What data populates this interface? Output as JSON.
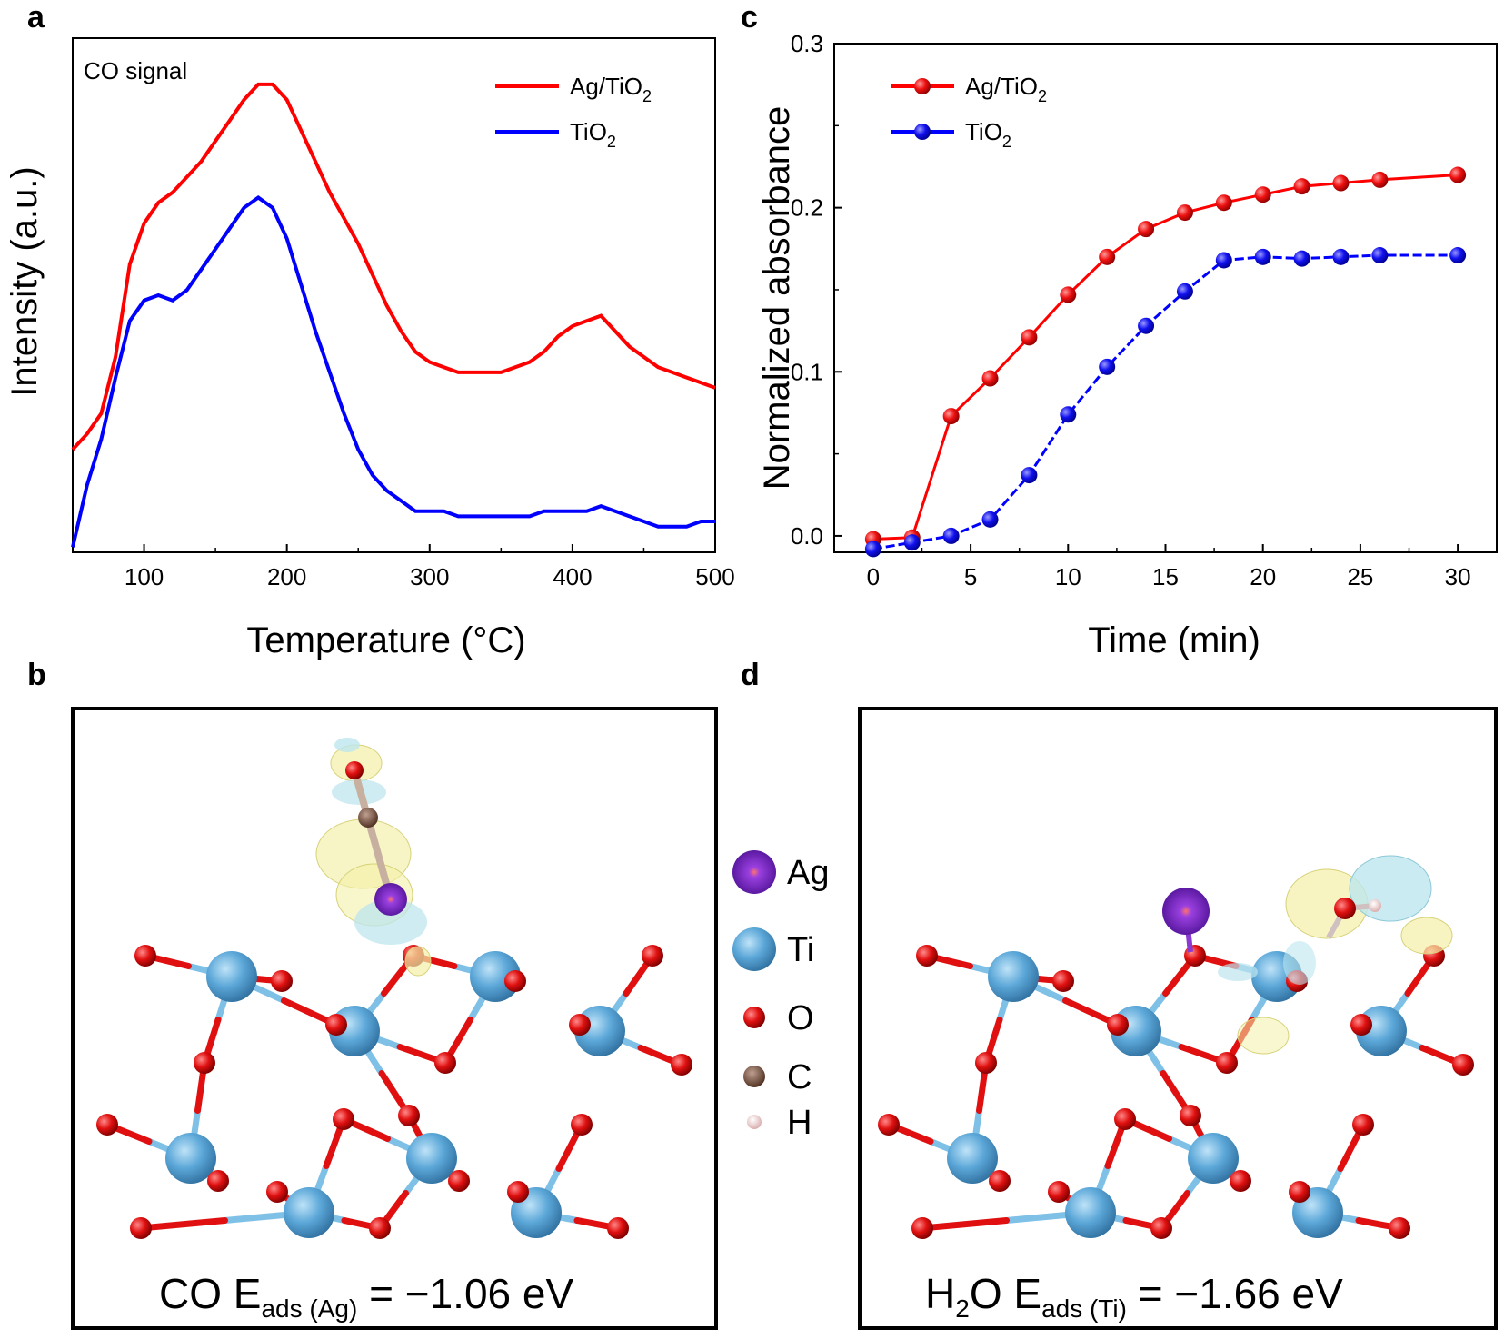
{
  "panels": {
    "a": {
      "label": "a"
    },
    "b": {
      "label": "b",
      "energy": {
        "prefix": "CO E",
        "sub": "ads (Ag)",
        "suffix": " = −1.06 eV"
      }
    },
    "c": {
      "label": "c"
    },
    "d": {
      "label": "d",
      "energy": {
        "pre": "H",
        "sub1": "2",
        "mid": "O E",
        "sub2": "ads (Ti)",
        "suffix": " = −1.66 eV"
      }
    }
  },
  "atom_legend": [
    {
      "name": "Ag",
      "color": "#6a1fb8"
    },
    {
      "name": "Ti",
      "color": "#5ba7d8"
    },
    {
      "name": "O",
      "color": "#e01010"
    },
    {
      "name": "C",
      "color": "#6b4a3a"
    },
    {
      "name": "H",
      "color": "#f0c8c8"
    }
  ],
  "chart_data": [
    {
      "id": "a",
      "type": "line",
      "title": "",
      "annotation": "CO signal",
      "xlabel": "Temperature (°C)",
      "ylabel": "Intensity (a.u.)",
      "xlim": [
        50,
        500
      ],
      "ylim": [
        0,
        10
      ],
      "xticks": [
        100,
        200,
        300,
        400,
        500
      ],
      "legend_position": "top-right",
      "series": [
        {
          "name": "Ag/TiO",
          "sub": "2",
          "color": "#ff0000",
          "x": [
            50,
            60,
            70,
            80,
            90,
            100,
            110,
            120,
            130,
            140,
            150,
            160,
            170,
            180,
            190,
            200,
            210,
            220,
            230,
            240,
            250,
            260,
            270,
            280,
            290,
            300,
            310,
            320,
            330,
            340,
            350,
            360,
            370,
            380,
            390,
            400,
            410,
            420,
            430,
            440,
            450,
            460,
            470,
            480,
            490,
            500
          ],
          "y": [
            2.0,
            2.3,
            2.7,
            3.8,
            5.6,
            6.4,
            6.8,
            7.0,
            7.3,
            7.6,
            8.0,
            8.4,
            8.8,
            9.1,
            9.1,
            8.8,
            8.2,
            7.6,
            7.0,
            6.5,
            6.0,
            5.4,
            4.8,
            4.3,
            3.9,
            3.7,
            3.6,
            3.5,
            3.5,
            3.5,
            3.5,
            3.6,
            3.7,
            3.9,
            4.2,
            4.4,
            4.5,
            4.6,
            4.3,
            4.0,
            3.8,
            3.6,
            3.5,
            3.4,
            3.3,
            3.2
          ]
        },
        {
          "name": "TiO",
          "sub": "2",
          "color": "#0000ff",
          "x": [
            50,
            60,
            70,
            80,
            90,
            100,
            110,
            120,
            130,
            140,
            150,
            160,
            170,
            180,
            190,
            200,
            210,
            220,
            230,
            240,
            250,
            260,
            270,
            280,
            290,
            300,
            310,
            320,
            330,
            340,
            350,
            360,
            370,
            380,
            390,
            400,
            410,
            420,
            430,
            440,
            450,
            460,
            470,
            480,
            490,
            500
          ],
          "y": [
            0.1,
            1.3,
            2.2,
            3.4,
            4.5,
            4.9,
            5.0,
            4.9,
            5.1,
            5.5,
            5.9,
            6.3,
            6.7,
            6.9,
            6.7,
            6.1,
            5.2,
            4.3,
            3.5,
            2.7,
            2.0,
            1.5,
            1.2,
            1.0,
            0.8,
            0.8,
            0.8,
            0.7,
            0.7,
            0.7,
            0.7,
            0.7,
            0.7,
            0.8,
            0.8,
            0.8,
            0.8,
            0.9,
            0.8,
            0.7,
            0.6,
            0.5,
            0.5,
            0.5,
            0.6,
            0.6
          ]
        }
      ]
    },
    {
      "id": "c",
      "type": "line",
      "title": "",
      "xlabel": "Time (min)",
      "ylabel": "Normalized absorbance",
      "xlim": [
        -2,
        32
      ],
      "ylim": [
        -0.01,
        0.3
      ],
      "xticks": [
        0,
        5,
        10,
        15,
        20,
        25,
        30
      ],
      "yticks": [
        0.0,
        0.1,
        0.2,
        0.3
      ],
      "legend_position": "top-left",
      "series": [
        {
          "name": "Ag/TiO",
          "sub": "2",
          "color": "#ff0000",
          "x": [
            0,
            2,
            4,
            6,
            8,
            10,
            12,
            14,
            16,
            18,
            20,
            22,
            24,
            26,
            30
          ],
          "y": [
            -0.002,
            -0.001,
            0.073,
            0.096,
            0.121,
            0.147,
            0.17,
            0.187,
            0.197,
            0.203,
            0.208,
            0.213,
            0.215,
            0.217,
            0.22
          ]
        },
        {
          "name": "TiO",
          "sub": "2",
          "color": "#0000ff",
          "x": [
            0,
            2,
            4,
            6,
            8,
            10,
            12,
            14,
            16,
            18,
            20,
            22,
            24,
            26,
            30
          ],
          "y": [
            -0.008,
            -0.004,
            0.0,
            0.01,
            0.037,
            0.074,
            0.103,
            0.128,
            0.149,
            0.168,
            0.17,
            0.169,
            0.17,
            0.171,
            0.171
          ]
        }
      ]
    }
  ]
}
